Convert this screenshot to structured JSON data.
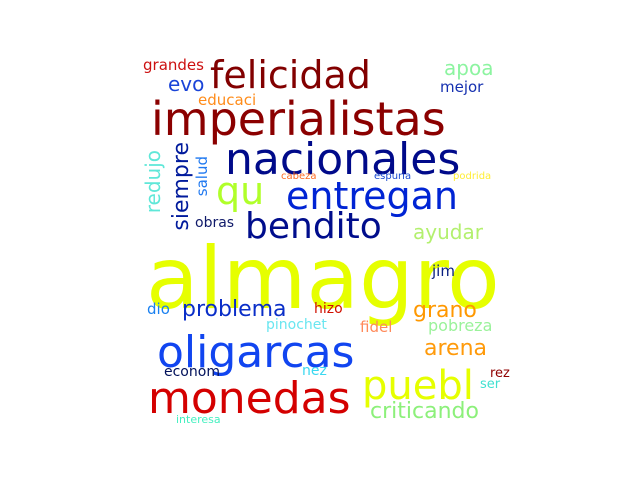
{
  "words": [
    {
      "text": "almagro",
      "color": "#e6ff00"
    },
    {
      "text": "imperialistas",
      "color": "#8b0000"
    },
    {
      "text": "nacionales",
      "color": "#000a8a"
    },
    {
      "text": "oligarcas",
      "color": "#1145f0"
    },
    {
      "text": "monedas",
      "color": "#d40000"
    },
    {
      "text": "felicidad",
      "color": "#820000"
    },
    {
      "text": "entregan",
      "color": "#0024d4"
    },
    {
      "text": "bendito",
      "color": "#000d8c"
    },
    {
      "text": "puebl",
      "color": "#e6ff00"
    },
    {
      "text": "qu",
      "color": "#b0ff2a"
    },
    {
      "text": "problema",
      "color": "#0a2ec8"
    },
    {
      "text": "siempre",
      "color": "#001a9c"
    },
    {
      "text": "criticando",
      "color": "#8cf07a"
    },
    {
      "text": "arena",
      "color": "#ff9a0a"
    },
    {
      "text": "grano",
      "color": "#ff9800"
    },
    {
      "text": "ayudar",
      "color": "#b3f06e"
    },
    {
      "text": "apoa",
      "color": "#8cf4a0"
    },
    {
      "text": "evo",
      "color": "#1a44d8"
    },
    {
      "text": "redujo",
      "color": "#5fe7d8"
    },
    {
      "text": "pobreza",
      "color": "#9af29a"
    },
    {
      "text": "educaci",
      "color": "#ff8c1a"
    },
    {
      "text": "mejor",
      "color": "#1530b0"
    },
    {
      "text": "grandes",
      "color": "#cc1010"
    },
    {
      "text": "salud",
      "color": "#1f78f0"
    },
    {
      "text": "obras",
      "color": "#101a6a"
    },
    {
      "text": "jim",
      "color": "#0a2080"
    },
    {
      "text": "dio",
      "color": "#1a80f0"
    },
    {
      "text": "hizo",
      "color": "#d01000"
    },
    {
      "text": "pinochet",
      "color": "#6ae6f0"
    },
    {
      "text": "fidel",
      "color": "#ff8a5a"
    },
    {
      "text": "econom",
      "color": "#00105a"
    },
    {
      "text": "nez",
      "color": "#3ad8f0"
    },
    {
      "text": "rez",
      "color": "#900000"
    },
    {
      "text": "ser",
      "color": "#40e0d0"
    },
    {
      "text": "interesa",
      "color": "#44f0c0"
    },
    {
      "text": "cabeza",
      "color": "#ff6a20"
    },
    {
      "text": "espuria",
      "color": "#1a4ad0"
    },
    {
      "text": "podrida",
      "color": "#ffee33"
    }
  ]
}
